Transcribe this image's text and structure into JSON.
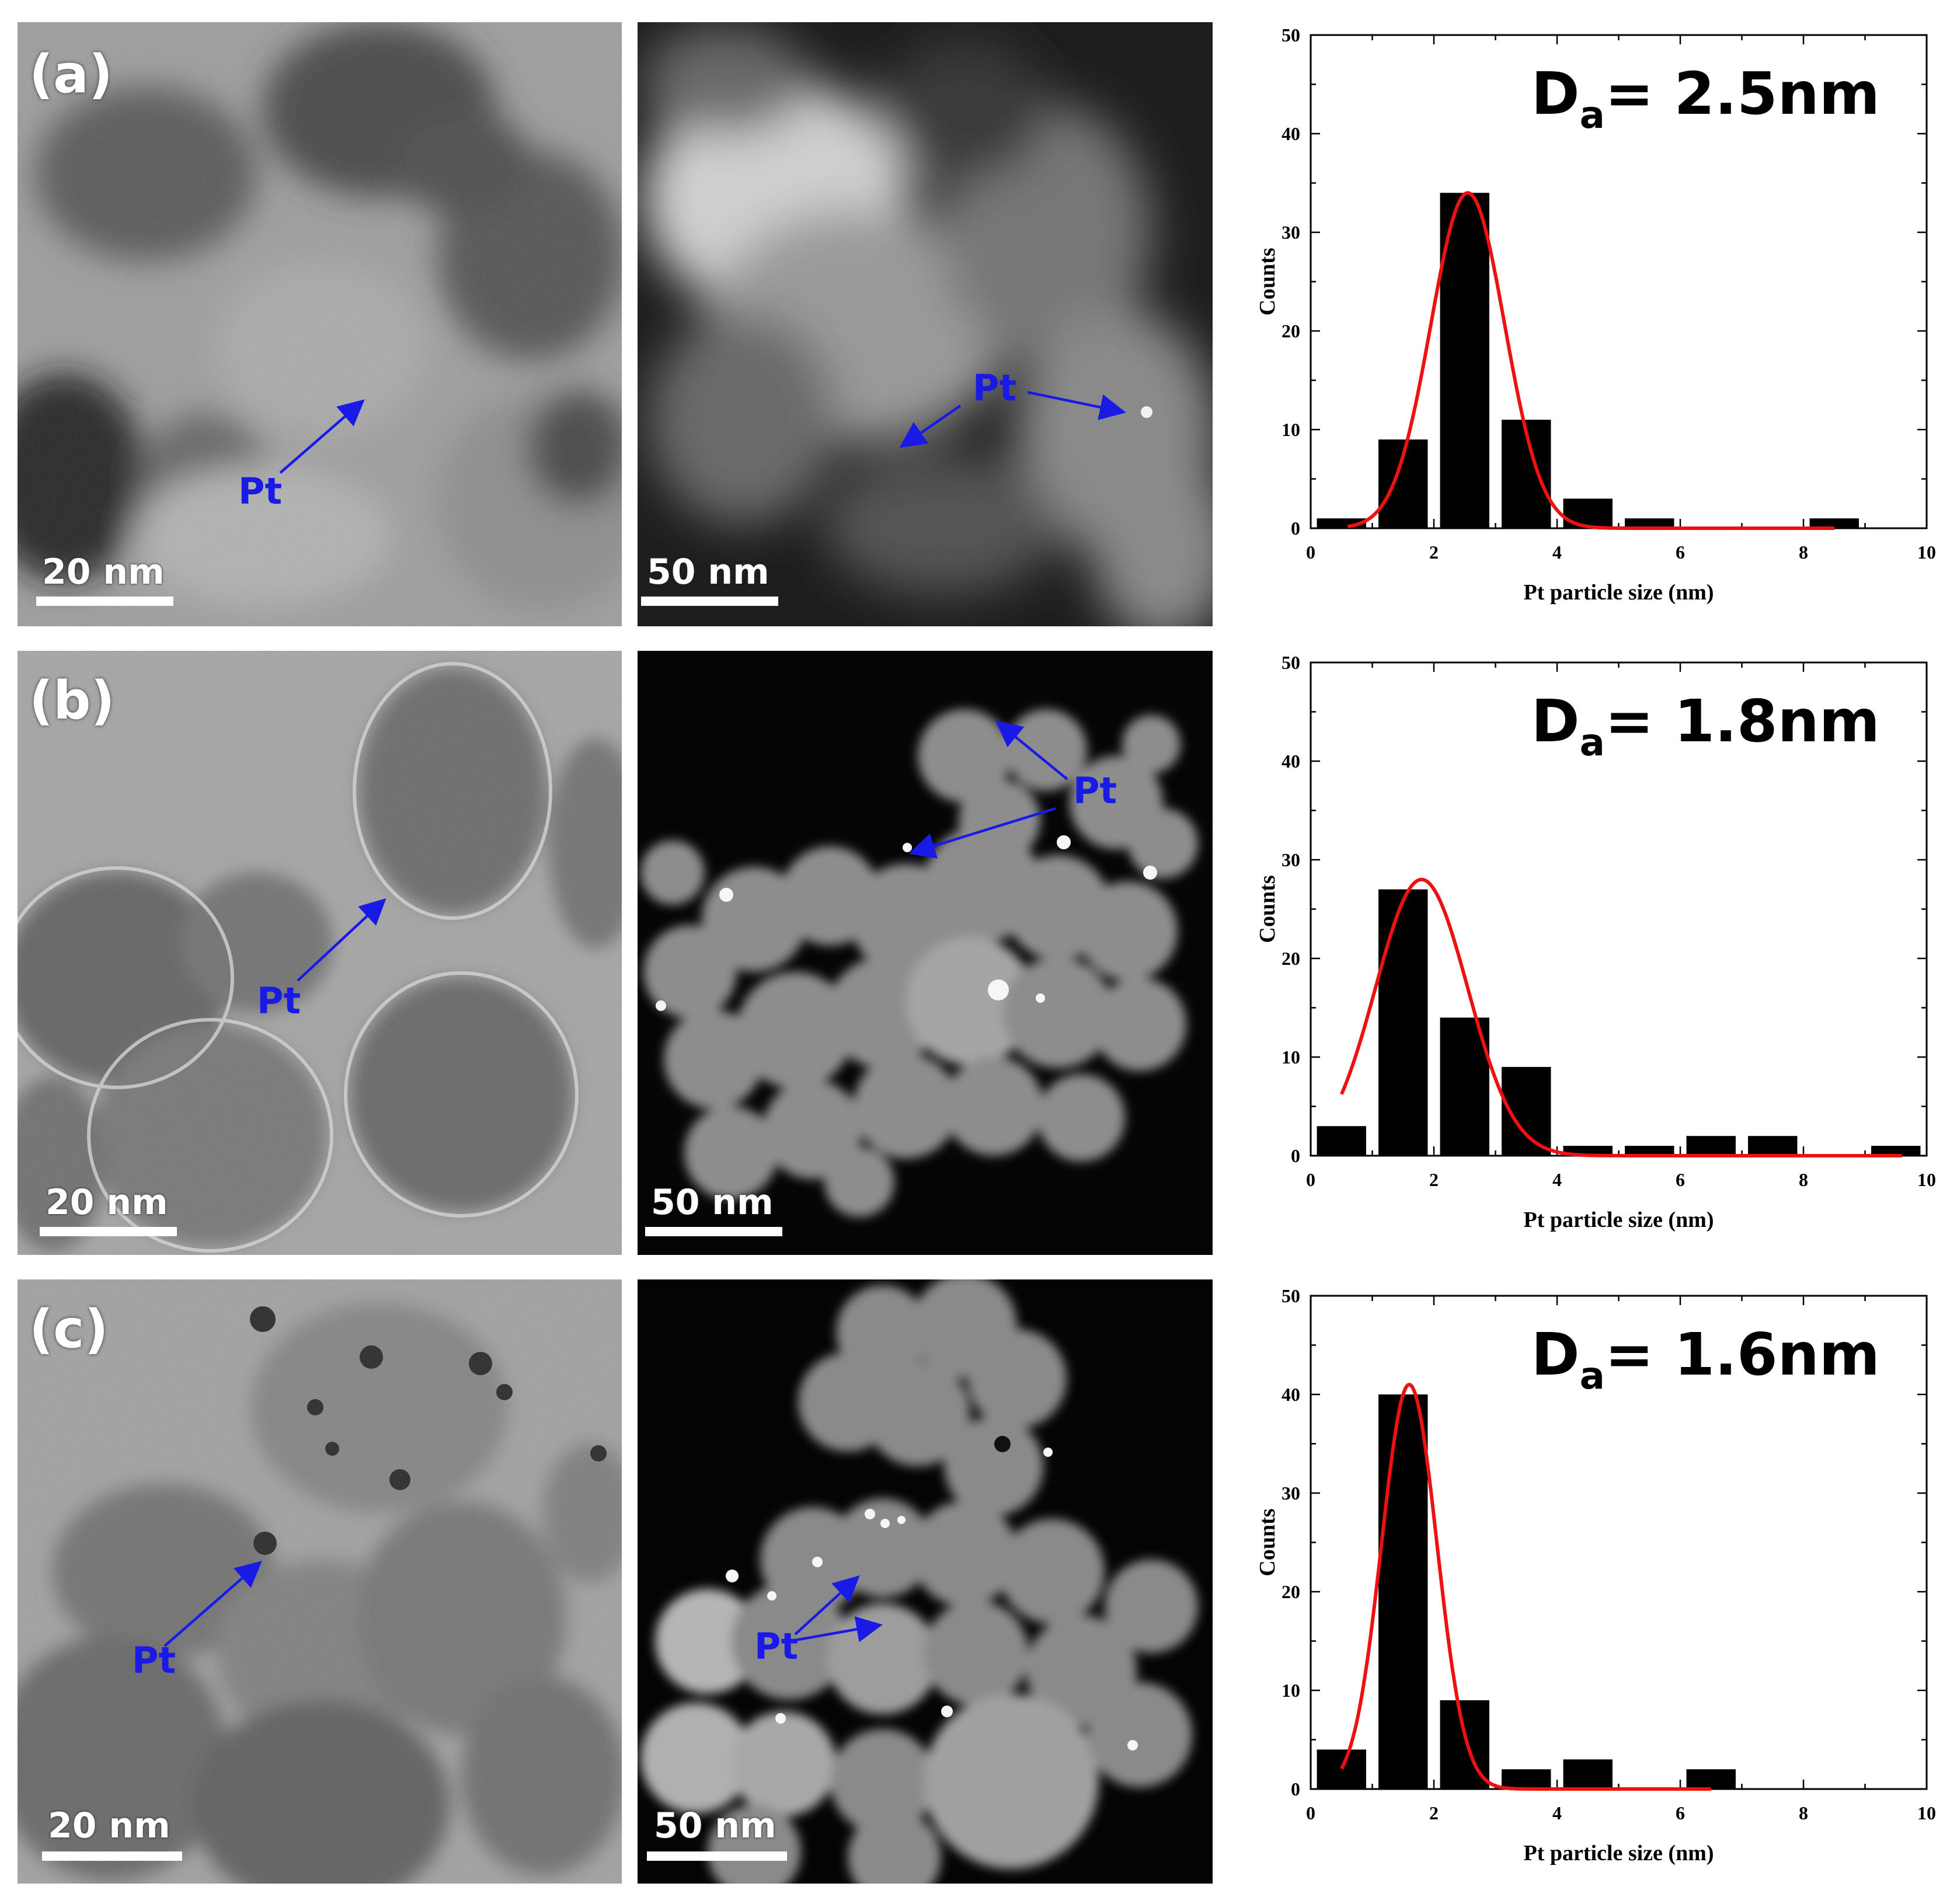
{
  "rows": [
    {
      "label": "(a)",
      "tem_scale": "20 nm",
      "haadf_scale": "50 nm",
      "pt_label": "Pt",
      "da_symbol": "D",
      "da_sub": "a",
      "da_value": "= 2.5nm"
    },
    {
      "label": "(b)",
      "tem_scale": "20 nm",
      "haadf_scale": "50 nm",
      "pt_label": "Pt",
      "da_symbol": "D",
      "da_sub": "a",
      "da_value": "= 1.8nm"
    },
    {
      "label": "(c)",
      "tem_scale": "20 nm",
      "haadf_scale": "50 nm",
      "pt_label": "Pt",
      "da_symbol": "D",
      "da_sub": "a",
      "da_value": "= 1.6nm"
    }
  ],
  "chart_data": [
    {
      "type": "bar",
      "xlabel": "Pt particle size (nm)",
      "ylabel": "Counts",
      "xlim": [
        0,
        10
      ],
      "ylim": [
        0,
        50
      ],
      "xticks": [
        0,
        2,
        4,
        6,
        8,
        10
      ],
      "yticks": [
        0,
        10,
        20,
        30,
        40,
        50
      ],
      "bars": [
        {
          "x": 0.5,
          "value": 1
        },
        {
          "x": 1.5,
          "value": 9
        },
        {
          "x": 2.5,
          "value": 34
        },
        {
          "x": 3.5,
          "value": 11
        },
        {
          "x": 4.5,
          "value": 3
        },
        {
          "x": 5.5,
          "value": 1
        },
        {
          "x": 8.5,
          "value": 1
        }
      ],
      "fit": {
        "type": "gaussian",
        "center": 2.55,
        "sigma": 0.6,
        "amplitude": 34,
        "x_range": [
          0.6,
          8.5
        ]
      },
      "annotation": "Da= 2.5nm",
      "bar_color": "#000000",
      "fit_color": "#ee1111"
    },
    {
      "type": "bar",
      "xlabel": "Pt particle size (nm)",
      "ylabel": "Counts",
      "xlim": [
        0,
        10
      ],
      "ylim": [
        0,
        50
      ],
      "xticks": [
        0,
        2,
        4,
        6,
        8,
        10
      ],
      "yticks": [
        0,
        10,
        20,
        30,
        40,
        50
      ],
      "bars": [
        {
          "x": 0.5,
          "value": 3
        },
        {
          "x": 1.5,
          "value": 27
        },
        {
          "x": 2.5,
          "value": 14
        },
        {
          "x": 3.5,
          "value": 9
        },
        {
          "x": 4.5,
          "value": 1
        },
        {
          "x": 5.5,
          "value": 1
        },
        {
          "x": 6.5,
          "value": 2
        },
        {
          "x": 7.5,
          "value": 2
        },
        {
          "x": 9.5,
          "value": 1
        }
      ],
      "fit": {
        "type": "gaussian",
        "center": 1.8,
        "sigma": 0.75,
        "amplitude": 28,
        "x_range": [
          0.5,
          9.6
        ]
      },
      "annotation": "Da= 1.8nm",
      "bar_color": "#000000",
      "fit_color": "#ee1111"
    },
    {
      "type": "bar",
      "xlabel": "Pt particle size (nm)",
      "ylabel": "Counts",
      "xlim": [
        0,
        10
      ],
      "ylim": [
        0,
        50
      ],
      "xticks": [
        0,
        2,
        4,
        6,
        8,
        10
      ],
      "yticks": [
        0,
        10,
        20,
        30,
        40,
        50
      ],
      "bars": [
        {
          "x": 0.5,
          "value": 4
        },
        {
          "x": 1.5,
          "value": 40
        },
        {
          "x": 2.5,
          "value": 9
        },
        {
          "x": 3.5,
          "value": 2
        },
        {
          "x": 4.5,
          "value": 3
        },
        {
          "x": 6.5,
          "value": 2
        }
      ],
      "fit": {
        "type": "gaussian",
        "center": 1.6,
        "sigma": 0.45,
        "amplitude": 41,
        "x_range": [
          0.5,
          6.5
        ]
      },
      "annotation": "Da= 1.6nm",
      "bar_color": "#000000",
      "fit_color": "#ee1111"
    }
  ]
}
